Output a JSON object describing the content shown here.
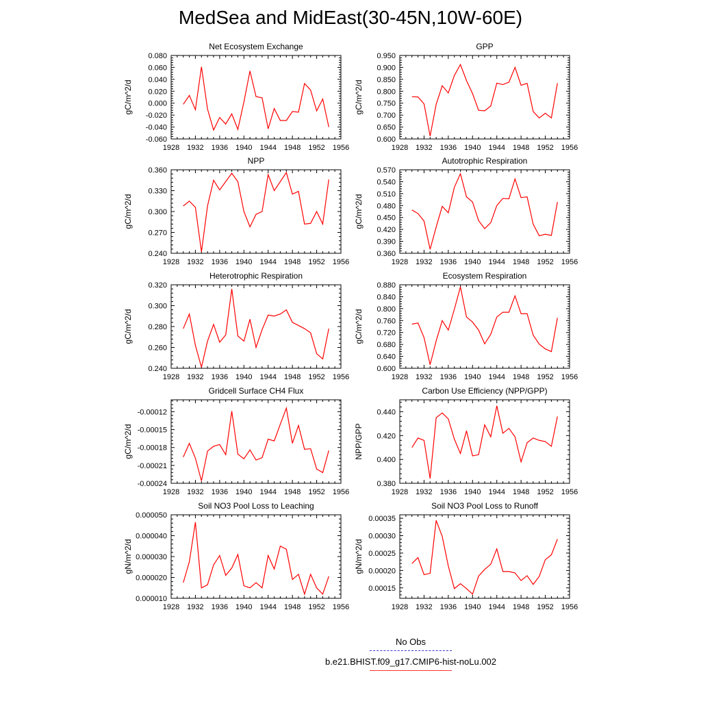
{
  "title": "MedSea and MidEast(30-45N,10W-60E)",
  "legend": {
    "obs_label": "No Obs",
    "obs_color": "#3333cc",
    "model_label": "b.e21.BHIST.f09_g17.CMIP6-hist-noLu.002",
    "model_color": "#ff0000"
  },
  "chart_data": [
    {
      "type": "line",
      "title": "Net Ecosystem Exchange",
      "ylabel": "gC/m^2/d",
      "xlim": [
        1928,
        1956
      ],
      "xticks": [
        "1928",
        "1932",
        "1936",
        "1940",
        "1944",
        "1948",
        "1952",
        "1956"
      ],
      "ylim": [
        -0.06,
        0.08
      ],
      "yticks": [
        "-0.060",
        "-0.040",
        "-0.020",
        "0.000",
        "0.020",
        "0.040",
        "0.060",
        "0.080"
      ],
      "x": [
        1930,
        1931,
        1932,
        1933,
        1934,
        1935,
        1936,
        1937,
        1938,
        1939,
        1940,
        1941,
        1942,
        1943,
        1944,
        1945,
        1946,
        1947,
        1948,
        1949,
        1950,
        1951,
        1952,
        1953,
        1954
      ],
      "values": [
        -0.002,
        0.013,
        -0.011,
        0.061,
        -0.01,
        -0.045,
        -0.024,
        -0.035,
        -0.018,
        -0.044,
        0.002,
        0.054,
        0.011,
        0.009,
        -0.043,
        -0.009,
        -0.029,
        -0.029,
        -0.014,
        -0.015,
        0.033,
        0.022,
        -0.013,
        0.007,
        -0.04
      ]
    },
    {
      "type": "line",
      "title": "GPP",
      "ylabel": "gC/m^2/d",
      "xlim": [
        1928,
        1956
      ],
      "xticks": [
        "1928",
        "1932",
        "1936",
        "1940",
        "1944",
        "1948",
        "1952",
        "1956"
      ],
      "ylim": [
        0.6,
        0.95
      ],
      "yticks": [
        "0.600",
        "0.650",
        "0.700",
        "0.750",
        "0.800",
        "0.850",
        "0.900",
        "0.950"
      ],
      "x": [
        1930,
        1931,
        1932,
        1933,
        1934,
        1935,
        1936,
        1937,
        1938,
        1939,
        1940,
        1941,
        1942,
        1943,
        1944,
        1945,
        1946,
        1947,
        1948,
        1949,
        1950,
        1951,
        1952,
        1953,
        1954
      ],
      "values": [
        0.777,
        0.776,
        0.747,
        0.612,
        0.745,
        0.823,
        0.793,
        0.866,
        0.912,
        0.845,
        0.79,
        0.72,
        0.718,
        0.738,
        0.834,
        0.828,
        0.838,
        0.9,
        0.825,
        0.833,
        0.715,
        0.688,
        0.708,
        0.688,
        0.834
      ]
    },
    {
      "type": "line",
      "title": "NPP",
      "ylabel": "gC/m^2/d",
      "xlim": [
        1928,
        1956
      ],
      "xticks": [
        "1928",
        "1932",
        "1936",
        "1940",
        "1944",
        "1948",
        "1952",
        "1956"
      ],
      "ylim": [
        0.24,
        0.36
      ],
      "yticks": [
        "0.240",
        "0.270",
        "0.300",
        "0.330",
        "0.360"
      ],
      "x": [
        1930,
        1931,
        1932,
        1933,
        1934,
        1935,
        1936,
        1937,
        1938,
        1939,
        1940,
        1941,
        1942,
        1943,
        1944,
        1945,
        1946,
        1947,
        1948,
        1949,
        1950,
        1951,
        1952,
        1953,
        1954
      ],
      "values": [
        0.308,
        0.315,
        0.306,
        0.242,
        0.308,
        0.345,
        0.331,
        0.343,
        0.355,
        0.343,
        0.3,
        0.278,
        0.296,
        0.3,
        0.353,
        0.33,
        0.343,
        0.356,
        0.325,
        0.329,
        0.282,
        0.283,
        0.3,
        0.282,
        0.346
      ]
    },
    {
      "type": "line",
      "title": "Autotrophic Respiration",
      "ylabel": "gC/m^2/d",
      "xlim": [
        1928,
        1956
      ],
      "xticks": [
        "1928",
        "1932",
        "1936",
        "1940",
        "1944",
        "1948",
        "1952",
        "1956"
      ],
      "ylim": [
        0.36,
        0.57
      ],
      "yticks": [
        "0.360",
        "0.390",
        "0.420",
        "0.450",
        "0.480",
        "0.510",
        "0.540",
        "0.570"
      ],
      "x": [
        1930,
        1931,
        1932,
        1933,
        1934,
        1935,
        1936,
        1937,
        1938,
        1939,
        1940,
        1941,
        1942,
        1943,
        1944,
        1945,
        1946,
        1947,
        1948,
        1949,
        1950,
        1951,
        1952,
        1953,
        1954
      ],
      "values": [
        0.469,
        0.46,
        0.441,
        0.37,
        0.426,
        0.478,
        0.462,
        0.526,
        0.56,
        0.502,
        0.489,
        0.442,
        0.422,
        0.437,
        0.48,
        0.498,
        0.497,
        0.547,
        0.5,
        0.502,
        0.433,
        0.404,
        0.408,
        0.405,
        0.489
      ]
    },
    {
      "type": "line",
      "title": "Heterotrophic Respiration",
      "ylabel": "gC/m^2/d",
      "xlim": [
        1928,
        1956
      ],
      "xticks": [
        "1928",
        "1932",
        "1936",
        "1940",
        "1944",
        "1948",
        "1952",
        "1956"
      ],
      "ylim": [
        0.24,
        0.32
      ],
      "yticks": [
        "0.240",
        "0.260",
        "0.280",
        "0.300",
        "0.320"
      ],
      "x": [
        1930,
        1931,
        1932,
        1933,
        1934,
        1935,
        1936,
        1937,
        1938,
        1939,
        1940,
        1941,
        1942,
        1943,
        1944,
        1945,
        1946,
        1947,
        1948,
        1949,
        1950,
        1951,
        1952,
        1953,
        1954
      ],
      "values": [
        0.278,
        0.292,
        0.262,
        0.241,
        0.266,
        0.282,
        0.265,
        0.272,
        0.316,
        0.271,
        0.266,
        0.287,
        0.26,
        0.277,
        0.291,
        0.29,
        0.292,
        0.296,
        0.284,
        0.281,
        0.278,
        0.274,
        0.254,
        0.249,
        0.278
      ]
    },
    {
      "type": "line",
      "title": "Ecosystem Respiration",
      "ylabel": "gC/m^2/d",
      "xlim": [
        1928,
        1956
      ],
      "xticks": [
        "1928",
        "1932",
        "1936",
        "1940",
        "1944",
        "1948",
        "1952",
        "1956"
      ],
      "ylim": [
        0.6,
        0.88
      ],
      "yticks": [
        "0.600",
        "0.640",
        "0.680",
        "0.720",
        "0.760",
        "0.800",
        "0.840",
        "0.880"
      ],
      "x": [
        1930,
        1931,
        1932,
        1933,
        1934,
        1935,
        1936,
        1937,
        1938,
        1939,
        1940,
        1941,
        1942,
        1943,
        1944,
        1945,
        1946,
        1947,
        1948,
        1949,
        1950,
        1951,
        1952,
        1953,
        1954
      ],
      "values": [
        0.748,
        0.752,
        0.703,
        0.612,
        0.692,
        0.76,
        0.728,
        0.798,
        0.873,
        0.772,
        0.755,
        0.728,
        0.682,
        0.714,
        0.772,
        0.788,
        0.788,
        0.843,
        0.783,
        0.783,
        0.711,
        0.681,
        0.665,
        0.656,
        0.769
      ]
    },
    {
      "type": "line",
      "title": "Gridcell Surface CH4 Flux",
      "ylabel": "gC/m^2/d",
      "xlim": [
        1928,
        1956
      ],
      "xticks": [
        "1928",
        "1932",
        "1936",
        "1940",
        "1944",
        "1948",
        "1952",
        "1956"
      ],
      "ylim": [
        -0.00024,
        -0.0001
      ],
      "yticks": [
        "-0.00024",
        "-0.00021",
        "-0.00018",
        "-0.00015",
        "-0.00012"
      ],
      "x": [
        1930,
        1931,
        1932,
        1933,
        1934,
        1935,
        1936,
        1937,
        1938,
        1939,
        1940,
        1941,
        1942,
        1943,
        1944,
        1945,
        1946,
        1947,
        1948,
        1949,
        1950,
        1951,
        1952,
        1953,
        1954
      ],
      "values": [
        -0.000196,
        -0.000173,
        -0.000198,
        -0.000236,
        -0.000186,
        -0.000178,
        -0.000175,
        -0.000192,
        -0.000119,
        -0.000191,
        -0.000199,
        -0.000184,
        -0.000201,
        -0.000197,
        -0.000166,
        -0.000169,
        -0.000141,
        -0.000114,
        -0.000173,
        -0.000143,
        -0.000183,
        -0.000182,
        -0.000216,
        -0.000222,
        -0.000185
      ]
    },
    {
      "type": "line",
      "title": "Carbon Use Efficiency (NPP/GPP)",
      "ylabel": "NPP/GPP",
      "xlim": [
        1928,
        1956
      ],
      "xticks": [
        "1928",
        "1932",
        "1936",
        "1940",
        "1944",
        "1948",
        "1952",
        "1956"
      ],
      "ylim": [
        0.38,
        0.45
      ],
      "yticks": [
        "0.380",
        "0.400",
        "0.420",
        "0.440"
      ],
      "x": [
        1930,
        1931,
        1932,
        1933,
        1934,
        1935,
        1936,
        1937,
        1938,
        1939,
        1940,
        1941,
        1942,
        1943,
        1944,
        1945,
        1946,
        1947,
        1948,
        1949,
        1950,
        1951,
        1952,
        1953,
        1954
      ],
      "values": [
        0.41,
        0.418,
        0.416,
        0.384,
        0.435,
        0.439,
        0.434,
        0.417,
        0.405,
        0.424,
        0.403,
        0.404,
        0.429,
        0.419,
        0.445,
        0.422,
        0.426,
        0.419,
        0.398,
        0.414,
        0.418,
        0.416,
        0.415,
        0.411,
        0.436
      ]
    },
    {
      "type": "line",
      "title": "Soil NO3 Pool Loss to Leaching",
      "ylabel": "gN/m^2/d",
      "xlim": [
        1928,
        1956
      ],
      "xticks": [
        "1928",
        "1932",
        "1936",
        "1940",
        "1944",
        "1948",
        "1952",
        "1956"
      ],
      "ylim": [
        1e-05,
        5e-05
      ],
      "yticks": [
        "0.000010",
        "0.000020",
        "0.000030",
        "0.000040",
        "0.000050"
      ],
      "x": [
        1930,
        1931,
        1932,
        1933,
        1934,
        1935,
        1936,
        1937,
        1938,
        1939,
        1940,
        1941,
        1942,
        1943,
        1944,
        1945,
        1946,
        1947,
        1948,
        1949,
        1950,
        1951,
        1952,
        1953,
        1954
      ],
      "values": [
        1.75e-05,
        2.75e-05,
        4.65e-05,
        1.5e-05,
        1.65e-05,
        2.6e-05,
        3.05e-05,
        2.1e-05,
        2.45e-05,
        3.1e-05,
        1.6e-05,
        1.5e-05,
        1.75e-05,
        1.5e-05,
        3.05e-05,
        2.4e-05,
        3.5e-05,
        3.35e-05,
        1.9e-05,
        2.15e-05,
        1.2e-05,
        2.15e-05,
        1.5e-05,
        1.2e-05,
        2.05e-05
      ]
    },
    {
      "type": "line",
      "title": "Soil NO3 Pool Loss to Runoff",
      "ylabel": "gN/m^2/d",
      "xlim": [
        1928,
        1956
      ],
      "xticks": [
        "1928",
        "1932",
        "1936",
        "1940",
        "1944",
        "1948",
        "1952",
        "1956"
      ],
      "ylim": [
        0.00012,
        0.00036
      ],
      "yticks": [
        "0.00015",
        "0.00020",
        "0.00025",
        "0.00030",
        "0.00035"
      ],
      "x": [
        1930,
        1931,
        1932,
        1933,
        1934,
        1935,
        1936,
        1937,
        1938,
        1939,
        1940,
        1941,
        1942,
        1943,
        1944,
        1945,
        1946,
        1947,
        1948,
        1949,
        1950,
        1951,
        1952,
        1953,
        1954
      ],
      "values": [
        0.00022,
        0.000237,
        0.000188,
        0.000192,
        0.000344,
        0.000298,
        0.000213,
        0.000148,
        0.000162,
        0.000148,
        0.000132,
        0.000184,
        0.000203,
        0.000218,
        0.000262,
        0.000197,
        0.000197,
        0.000193,
        0.000171,
        0.000185,
        0.00016,
        0.000183,
        0.000231,
        0.000245,
        0.00029
      ]
    }
  ]
}
